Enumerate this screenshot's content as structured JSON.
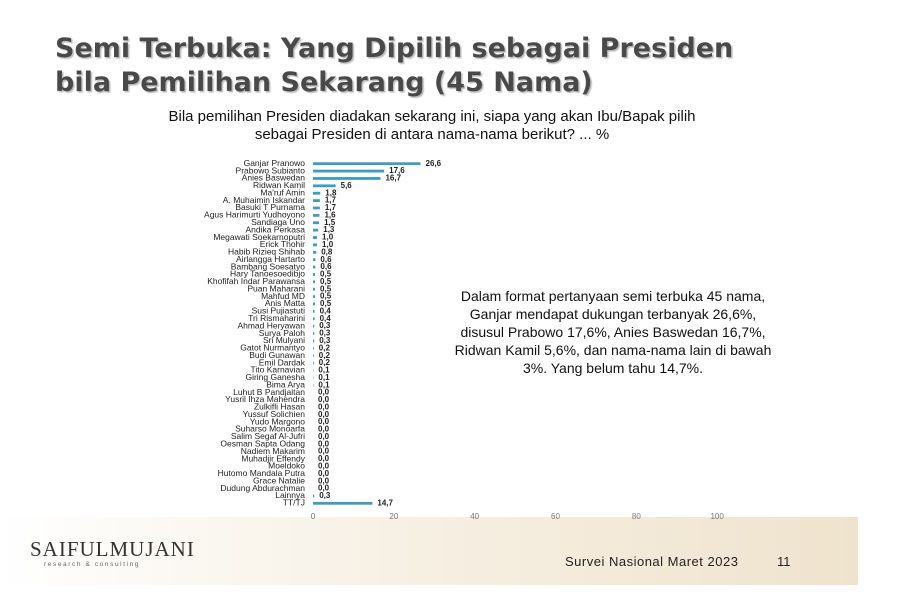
{
  "chart_data": {
    "type": "bar",
    "orientation": "horizontal",
    "title": [
      "Semi Terbuka: Yang Dipilih sebagai Presiden",
      "bila Pemilihan Sekarang (45 Nama)"
    ],
    "subtitle": [
      "Bila pemilihan Presiden diadakan sekarang ini, siapa yang akan Ibu/Bapak pilih",
      "sebagai Presiden di antara nama-nama berikut? ... %"
    ],
    "categories": [
      "Ganjar Pranowo",
      "Prabowo Subianto",
      "Anies Baswedan",
      "Ridwan Kamil",
      "Ma'ruf Amin",
      "A. Muhaimin Iskandar",
      "Basuki T Purnama",
      "Agus Harimurti Yudhoyono",
      "Sandiaga Uno",
      "Andika Perkasa",
      "Megawati Soekarnoputri",
      "Erick Thohir",
      "Habib Rizieq Shihab",
      "Airlangga Hartarto",
      "Bambang Soesatyo",
      "Hary Tanoesoedibjo",
      "Khofifah Indar Parawansa",
      "Puan Maharani",
      "Mahfud MD",
      "Anis Matta",
      "Susi Pujiastuti",
      "Tri Rismaharini",
      "Ahmad Heryawan",
      "Surya Paloh",
      "Sri Mulyani",
      "Gatot Nurmantyo",
      "Budi Gunawan",
      "Emil Dardak",
      "Tito Karnavian",
      "Giring Ganesha",
      "Bima Arya",
      "Luhut B Pandjaitan",
      "Yusril Ihza Mahendra",
      "Zulkifli Hasan",
      "Yussuf Solichien",
      "Yudo Margono",
      "Suharso Monoarfa",
      "Salim Segaf Al-Jufri",
      "Oesman Sapta Odang",
      "Nadiem Makarim",
      "Muhadjir Effendy",
      "Moeldoko",
      "Hutomo Mandala Putra",
      "Grace Natalie",
      "Dudung Abdurachman",
      "Lainnya",
      "TT/TJ"
    ],
    "values": [
      26.6,
      17.6,
      16.7,
      5.6,
      1.8,
      1.7,
      1.7,
      1.6,
      1.5,
      1.3,
      1.0,
      1.0,
      0.8,
      0.6,
      0.6,
      0.5,
      0.5,
      0.5,
      0.5,
      0.5,
      0.4,
      0.4,
      0.3,
      0.3,
      0.3,
      0.2,
      0.2,
      0.2,
      0.1,
      0.1,
      0.1,
      0.0,
      0.0,
      0.0,
      0.0,
      0.0,
      0.0,
      0.0,
      0.0,
      0.0,
      0.0,
      0.0,
      0.0,
      0.0,
      0.0,
      0.3,
      14.7
    ],
    "value_labels": [
      "26,6",
      "17,6",
      "16,7",
      "5,6",
      "1,8",
      "1,7",
      "1,7",
      "1,6",
      "1,5",
      "1,3",
      "1,0",
      "1,0",
      "0,8",
      "0,6",
      "0,6",
      "0,5",
      "0,5",
      "0,5",
      "0,5",
      "0,5",
      "0,4",
      "0,4",
      "0,3",
      "0,3",
      "0,3",
      "0,2",
      "0,2",
      "0,2",
      "0,1",
      "0,1",
      "0,1",
      "0,0",
      "0,0",
      "0,0",
      "0,0",
      "0,0",
      "0,0",
      "0,0",
      "0,0",
      "0,0",
      "0,0",
      "0,0",
      "0,0",
      "0,0",
      "0,0",
      "0,3",
      "14,7"
    ],
    "color": "#3d9cc0",
    "xlim": [
      0,
      120
    ],
    "xticks": [
      0,
      20,
      40,
      60,
      80,
      100
    ],
    "annotation": [
      "Dalam format pertanyaan semi terbuka 45 nama,",
      "Ganjar mendapat dukungan terbanyak 26,6%,",
      "disusul Prabowo 17,6%, Anies Baswedan 16,7%,",
      "Ridwan Kamil 5,6%, dan nama-nama lain di bawah",
      "3%. Yang belum tahu 14,7%."
    ]
  },
  "footer": {
    "logo": "SAIFULMUJANI",
    "tagline": "research & consulting",
    "survey": "Survei Nasional Maret 2023",
    "page": "11"
  }
}
